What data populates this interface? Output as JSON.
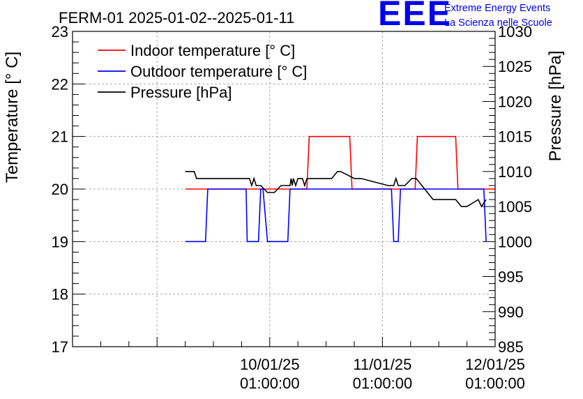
{
  "logo": {
    "mark": "EEE",
    "line1": "Extreme Energy Events",
    "line2": "La Scienza nelle Scuole",
    "color": "#0000ee"
  },
  "chart_data": {
    "type": "line",
    "title": "FERM-01 2025-01-02--2025-01-11",
    "ylabel": "Temperature [° C]",
    "y2label": "Pressure [hPa]",
    "ylim": [
      17,
      23
    ],
    "y2lim": [
      985,
      1030
    ],
    "xlim": [
      8.25,
      12.0
    ],
    "x_ticks": [
      {
        "x": 9.0,
        "label_date": "",
        "label_time": ""
      },
      {
        "x": 10.0,
        "label_date": "10/01/25",
        "label_time": "01:00:00"
      },
      {
        "x": 11.0,
        "label_date": "11/01/25",
        "label_time": "01:00:00"
      },
      {
        "x": 12.0,
        "label_date": "12/01/25",
        "label_time": "01:00:00"
      }
    ],
    "y_ticks": [
      17,
      18,
      19,
      20,
      21,
      22,
      23
    ],
    "y2_ticks": [
      985,
      990,
      995,
      1000,
      1005,
      1010,
      1015,
      1020,
      1025,
      1030
    ],
    "grid": true,
    "legend_position": "top-left",
    "series": [
      {
        "name": "Indoor temperature [° C]",
        "axis": "left",
        "color": "#ff0000",
        "x": [
          9.25,
          10.33,
          10.35,
          10.71,
          10.73,
          11.29,
          11.31,
          11.65,
          11.67,
          12.0
        ],
        "y": [
          20,
          20,
          21,
          21,
          20,
          20,
          21,
          21,
          20,
          20
        ]
      },
      {
        "name": "Outdoor temperature [° C]",
        "axis": "left",
        "color": "#0000ff",
        "x": [
          9.25,
          9.43,
          9.45,
          9.79,
          9.8,
          9.9,
          9.92,
          9.94,
          9.98,
          10.16,
          10.18,
          11.08,
          11.1,
          11.14,
          11.16,
          11.9,
          11.92
        ],
        "y": [
          19,
          19,
          20,
          20,
          19,
          19,
          20,
          20,
          19,
          19,
          20,
          20,
          19,
          19,
          20,
          20,
          19
        ]
      },
      {
        "name": "Pressure [hPa]",
        "axis": "right",
        "color": "#000000",
        "x": [
          9.25,
          9.33,
          9.35,
          9.82,
          9.84,
          9.86,
          9.88,
          9.92,
          9.98,
          10.04,
          10.1,
          10.18,
          10.19,
          10.2,
          10.21,
          10.23,
          10.25,
          10.27,
          10.29,
          10.31,
          10.33,
          10.39,
          10.41,
          10.55,
          10.6,
          10.63,
          10.75,
          10.81,
          11.05,
          11.1,
          11.12,
          11.14,
          11.2,
          11.26,
          11.3,
          11.35,
          11.4,
          11.45,
          11.55,
          11.65,
          11.7,
          11.75,
          11.85,
          11.88,
          11.92
        ],
        "y": [
          1010,
          1010,
          1009,
          1009,
          1008,
          1009,
          1008,
          1008,
          1007,
          1007,
          1008,
          1008,
          1009,
          1008,
          1009,
          1008,
          1009,
          1009,
          1009,
          1008,
          1009,
          1009,
          1009,
          1009,
          1010,
          1010,
          1009,
          1009,
          1008,
          1008,
          1009,
          1008,
          1008,
          1009,
          1009,
          1008,
          1007,
          1006,
          1006,
          1006,
          1005,
          1005,
          1006,
          1005,
          1006
        ]
      }
    ]
  }
}
